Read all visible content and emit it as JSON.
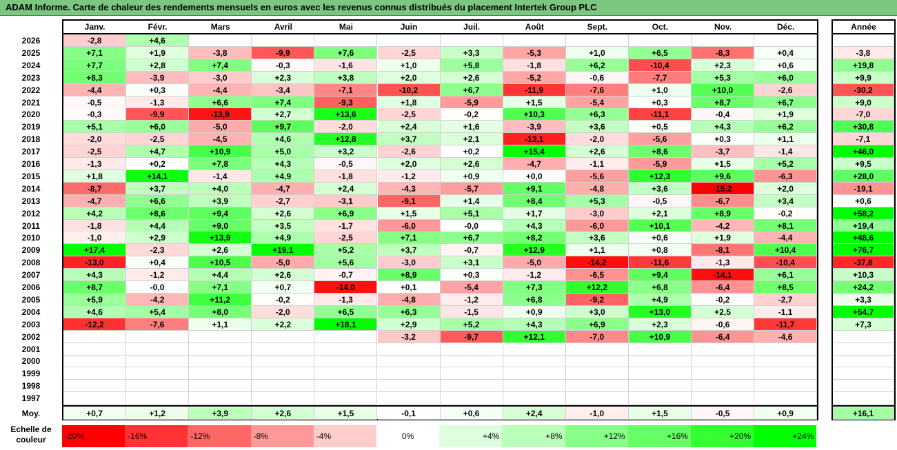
{
  "title": "ADAM Informe. Carte de chaleur des rendements mensuels en euros avec les revenus connus distribués du placement Intertek Group PLC",
  "chart_data": {
    "type": "heatmap",
    "months": [
      "Janv.",
      "Févr.",
      "Mars",
      "Avril",
      "Mai",
      "Juin",
      "Juil.",
      "Août",
      "Sept.",
      "Oct.",
      "Nov.",
      "Déc."
    ],
    "year_header": "Année",
    "avg_label": "Moy.",
    "rows": [
      {
        "year": "2026",
        "values": [
          "-2,8",
          "+4,6",
          "",
          "",
          "",
          "",
          "",
          "",
          "",
          "",
          "",
          ""
        ],
        "annual": ""
      },
      {
        "year": "2025",
        "values": [
          "+7,1",
          "+1,9",
          "-3,8",
          "-9,9",
          "+7,6",
          "-2,5",
          "+3,3",
          "-5,3",
          "+1,0",
          "+6,5",
          "-8,3",
          "+0,4"
        ],
        "annual": "-3,8"
      },
      {
        "year": "2024",
        "values": [
          "+7,7",
          "+2,8",
          "+7,4",
          "-0,3",
          "-1,6",
          "+1,0",
          "+5,8",
          "-1,8",
          "+6,2",
          "-10,4",
          "+2,3",
          "+0,6"
        ],
        "annual": "+19,8"
      },
      {
        "year": "2023",
        "values": [
          "+8,3",
          "-3,9",
          "-3,0",
          "+2,3",
          "+3,8",
          "+2,0",
          "+2,6",
          "-5,2",
          "-0,6",
          "-7,7",
          "+5,3",
          "+6,0"
        ],
        "annual": "+9,9"
      },
      {
        "year": "2022",
        "values": [
          "-4,4",
          "+0,3",
          "-4,4",
          "-3,4",
          "-7,1",
          "-10,2",
          "+6,7",
          "-11,9",
          "-7,6",
          "+1,0",
          "+10,0",
          "-2,6"
        ],
        "annual": "-30,2"
      },
      {
        "year": "2021",
        "values": [
          "-0,5",
          "-1,3",
          "+6,6",
          "+7,4",
          "-9,3",
          "+1,8",
          "-5,9",
          "+1,5",
          "-5,4",
          "+0,3",
          "+8,7",
          "+6,7"
        ],
        "annual": "+9,0"
      },
      {
        "year": "2020",
        "values": [
          "-0,3",
          "-9,9",
          "-13,9",
          "+2,7",
          "+13,6",
          "-2,5",
          "-0,2",
          "+10,3",
          "+6,3",
          "-11,1",
          "-0,4",
          "+1,9"
        ],
        "annual": "-7,0"
      },
      {
        "year": "2019",
        "values": [
          "+5,1",
          "+6,0",
          "-5,0",
          "+9,7",
          "-2,0",
          "+2,4",
          "+1,6",
          "-3,9",
          "+3,6",
          "+0,5",
          "+4,3",
          "+6,2"
        ],
        "annual": "+30,8"
      },
      {
        "year": "2018",
        "values": [
          "-2,0",
          "-2,5",
          "-4,5",
          "+4,6",
          "+12,8",
          "+3,7",
          "+2,1",
          "-13,1",
          "-2,0",
          "-5,6",
          "+0,3",
          "+1,1"
        ],
        "annual": "-7,1"
      },
      {
        "year": "2017",
        "values": [
          "-2,5",
          "+4,7",
          "+10,9",
          "+5,0",
          "+3,2",
          "-2,6",
          "+0,2",
          "+15,4",
          "+2,6",
          "+8,6",
          "-3,7",
          "-1,4"
        ],
        "annual": "+46,0"
      },
      {
        "year": "2016",
        "values": [
          "-1,3",
          "+0,2",
          "+7,8",
          "+4,3",
          "-0,5",
          "+2,0",
          "+2,6",
          "-4,7",
          "-1,1",
          "-5,9",
          "+1,5",
          "+5,2"
        ],
        "annual": "+9,5"
      },
      {
        "year": "2015",
        "values": [
          "+1,8",
          "+14,1",
          "-1,4",
          "+4,9",
          "-1,8",
          "-1,2",
          "+0,9",
          "+0,0",
          "-5,6",
          "+12,3",
          "+9,6",
          "-6,3"
        ],
        "annual": "+28,0"
      },
      {
        "year": "2014",
        "values": [
          "-8,7",
          "+3,7",
          "+4,0",
          "-4,7",
          "+2,4",
          "-4,3",
          "-5,7",
          "+9,1",
          "-4,8",
          "+3,6",
          "-15,2",
          "+2,0"
        ],
        "annual": "-19,1"
      },
      {
        "year": "2013",
        "values": [
          "-4,7",
          "+6,6",
          "+3,9",
          "-2,7",
          "-3,1",
          "-9,1",
          "+1,4",
          "+8,4",
          "+5,3",
          "-0,5",
          "-6,7",
          "+3,4"
        ],
        "annual": "+0,6"
      },
      {
        "year": "2012",
        "values": [
          "+4,2",
          "+8,6",
          "+9,4",
          "+2,6",
          "+6,9",
          "+1,5",
          "+5,1",
          "+1,7",
          "-3,0",
          "+2,1",
          "+8,9",
          "-0,2"
        ],
        "annual": "+58,2"
      },
      {
        "year": "2011",
        "values": [
          "-1,8",
          "+4,4",
          "+9,0",
          "+3,5",
          "-1,7",
          "-6,0",
          "-0,0",
          "+4,3",
          "-6,0",
          "+10,1",
          "-4,2",
          "+8,1"
        ],
        "annual": "+19,4"
      },
      {
        "year": "2010",
        "values": [
          "-1,0",
          "+2,9",
          "+13,9",
          "+4,9",
          "-2,5",
          "+7,1",
          "+6,7",
          "+8,2",
          "+3,6",
          "+0,6",
          "+1,9",
          "-4,4"
        ],
        "annual": "+48,6"
      },
      {
        "year": "2009",
        "values": [
          "+17,4",
          "-2,3",
          "+2,6",
          "+19,1",
          "+5,2",
          "+3,7",
          "-0,7",
          "+12,9",
          "+1,1",
          "+0,8",
          "-8,1",
          "+10,4"
        ],
        "annual": "+76,7"
      },
      {
        "year": "2008",
        "values": [
          "-13,0",
          "+0,4",
          "+10,5",
          "-5,0",
          "+5,6",
          "-3,0",
          "+3,1",
          "-5,0",
          "-14,2",
          "-11,6",
          "-1,3",
          "-10,4"
        ],
        "annual": "-37,8"
      },
      {
        "year": "2007",
        "values": [
          "+4,3",
          "-1,2",
          "+4,4",
          "+2,6",
          "-0,7",
          "+8,9",
          "+0,3",
          "-1,2",
          "-6,5",
          "+9,4",
          "-14,1",
          "+6,1"
        ],
        "annual": "+10,3"
      },
      {
        "year": "2006",
        "values": [
          "+8,7",
          "-0,0",
          "+7,1",
          "+0,7",
          "-14,0",
          "+0,1",
          "-5,4",
          "+7,3",
          "+12,2",
          "+6,8",
          "-6,4",
          "+8,5"
        ],
        "annual": "+24,2"
      },
      {
        "year": "2005",
        "values": [
          "+5,9",
          "-4,2",
          "+11,2",
          "-0,2",
          "-1,3",
          "-4,8",
          "-1,2",
          "+6,8",
          "-9,2",
          "+4,9",
          "-0,2",
          "-2,7"
        ],
        "annual": "+3,3"
      },
      {
        "year": "2004",
        "values": [
          "+4,6",
          "+5,4",
          "+8,0",
          "-2,0",
          "+6,5",
          "+6,3",
          "-1,5",
          "+0,9",
          "+3,0",
          "+13,0",
          "+2,5",
          "-1,1"
        ],
        "annual": "+54,7"
      },
      {
        "year": "2003",
        "values": [
          "-12,2",
          "-7,6",
          "+1,1",
          "+2,2",
          "+18,1",
          "+2,9",
          "+5,2",
          "+4,3",
          "+6,9",
          "+2,3",
          "-0,6",
          "-11,7"
        ],
        "annual": "+7,3"
      },
      {
        "year": "2002",
        "values": [
          "",
          "",
          "",
          "",
          "",
          "-3,2",
          "-9,7",
          "+12,1",
          "-7,0",
          "+10,9",
          "-6,4",
          "-4,6"
        ],
        "annual": ""
      },
      {
        "year": "2001",
        "values": [
          "",
          "",
          "",
          "",
          "",
          "",
          "",
          "",
          "",
          "",
          "",
          ""
        ],
        "annual": ""
      },
      {
        "year": "2000",
        "values": [
          "",
          "",
          "",
          "",
          "",
          "",
          "",
          "",
          "",
          "",
          "",
          ""
        ],
        "annual": ""
      },
      {
        "year": "1999",
        "values": [
          "",
          "",
          "",
          "",
          "",
          "",
          "",
          "",
          "",
          "",
          "",
          ""
        ],
        "annual": ""
      },
      {
        "year": "1998",
        "values": [
          "",
          "",
          "",
          "",
          "",
          "",
          "",
          "",
          "",
          "",
          "",
          ""
        ],
        "annual": ""
      },
      {
        "year": "1997",
        "values": [
          "",
          "",
          "",
          "",
          "",
          "",
          "",
          "",
          "",
          "",
          "",
          ""
        ],
        "annual": ""
      }
    ],
    "averages": [
      "+0,7",
      "+1,2",
      "+3,9",
      "+2,6",
      "+1,5",
      "-0,1",
      "+0,6",
      "+2,4",
      "-1,0",
      "+1,5",
      "-0,5",
      "+0,9"
    ],
    "avg_annual": "+16,1",
    "color_scale": {
      "label": "Echelle de couleur",
      "stops": [
        "-20%",
        "-16%",
        "-12%",
        "-8%",
        "-4%",
        "0%",
        "+4%",
        "+8%",
        "+12%",
        "+16%",
        "+20%",
        "+24%"
      ],
      "stop_colors": [
        "#ff0000",
        "#ff3333",
        "#ff6666",
        "#ff9999",
        "#ffcccc",
        "#ffffff",
        "#ddffdd",
        "#bbffbb",
        "#88ff88",
        "#66ff66",
        "#33ff33",
        "#00ff00"
      ]
    }
  }
}
